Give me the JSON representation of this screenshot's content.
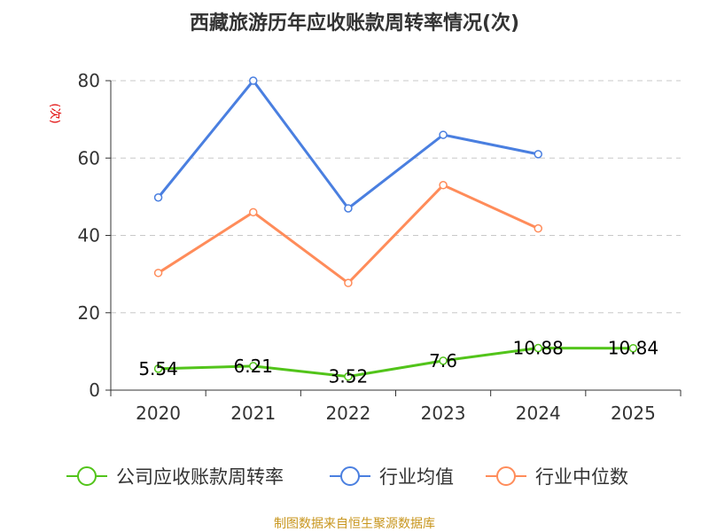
{
  "chart_data": {
    "type": "line",
    "title": "西藏旅游历年应收账款周转率情况(次)",
    "ylabel": "(次)",
    "categories": [
      "2020",
      "2021",
      "2022",
      "2023",
      "2024",
      "2025"
    ],
    "ylim": [
      0,
      80
    ],
    "yticks": [
      0,
      20,
      40,
      60,
      80
    ],
    "grid": true,
    "legend_position": "bottom",
    "series": [
      {
        "name": "公司应收账款周转率",
        "color": "#52c41a",
        "values": [
          5.54,
          6.21,
          3.52,
          7.6,
          10.88,
          10.84
        ],
        "labels": [
          "5.54",
          "6.21",
          "3.52",
          "7.6",
          "10.88",
          "10.84"
        ]
      },
      {
        "name": "行业均值",
        "color": "#4a7fe0",
        "values": [
          49.8,
          80,
          47,
          66,
          61,
          null
        ]
      },
      {
        "name": "行业中位数",
        "color": "#ff8c5a",
        "values": [
          30.3,
          46,
          27.7,
          53,
          41.8,
          null
        ]
      }
    ]
  },
  "footer": {
    "source": "制图数据来自恒生聚源数据库",
    "color": "#c8961e"
  }
}
